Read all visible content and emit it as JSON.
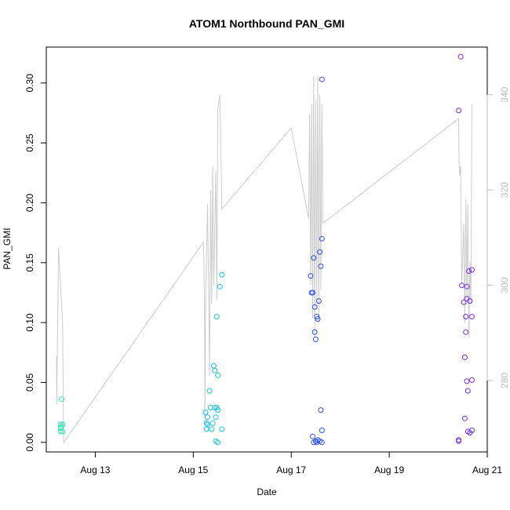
{
  "chart_data": {
    "type": "scatter",
    "title": "ATOM1 Northbound PAN_GMI",
    "xlabel": "Date",
    "ylabel": "PAN_GMI",
    "xlim": [
      "2024-08-12T00:00",
      "2024-08-21T00:00"
    ],
    "ylim": [
      -0.008,
      0.33
    ],
    "y2lim": [
      265,
      350
    ],
    "x_ticks": [
      {
        "x": "2024-08-13T00:00",
        "label": "Aug 13"
      },
      {
        "x": "2024-08-15T00:00",
        "label": "Aug 15"
      },
      {
        "x": "2024-08-17T00:00",
        "label": "Aug 17"
      },
      {
        "x": "2024-08-19T00:00",
        "label": "Aug 19"
      },
      {
        "x": "2024-08-21T00:00",
        "label": "Aug 21"
      }
    ],
    "y_ticks": [
      "0.00",
      "0.05",
      "0.10",
      "0.15",
      "0.20",
      "0.25",
      "0.30"
    ],
    "y2_ticks": [
      "280",
      "300",
      "320",
      "340"
    ],
    "grid": false,
    "colors": {
      "Aug 12": "#2ee8b4",
      "Aug 15": "#19c3e6",
      "Aug 17": "#2d4fe8",
      "Aug 20": "#7a2de0",
      "line": "#cccccc"
    },
    "series": [
      {
        "group": "Aug 12",
        "points": [
          [
            "2024-08-12T07:00",
            0.015
          ],
          [
            "2024-08-12T07:00",
            0.012
          ],
          [
            "2024-08-12T07:00",
            0.009
          ],
          [
            "2024-08-12T07:30",
            0.036
          ],
          [
            "2024-08-12T07:30",
            0.013
          ],
          [
            "2024-08-12T08:00",
            0.015
          ],
          [
            "2024-08-12T08:00",
            0.009
          ]
        ]
      },
      {
        "group": "Aug 15",
        "points": [
          [
            "2024-08-15T06:00",
            0.025
          ],
          [
            "2024-08-15T06:30",
            0.016
          ],
          [
            "2024-08-15T06:30",
            0.011
          ],
          [
            "2024-08-15T07:00",
            0.015
          ],
          [
            "2024-08-15T07:00",
            0.021
          ],
          [
            "2024-08-15T08:00",
            0.043
          ],
          [
            "2024-08-15T08:30",
            0.029
          ],
          [
            "2024-08-15T09:00",
            0.011
          ],
          [
            "2024-08-15T09:30",
            0.016
          ],
          [
            "2024-08-15T10:00",
            0.064
          ],
          [
            "2024-08-15T10:30",
            0.06
          ],
          [
            "2024-08-15T10:30",
            0.029
          ],
          [
            "2024-08-15T11:00",
            0.021
          ],
          [
            "2024-08-15T11:00",
            0.001
          ],
          [
            "2024-08-15T11:30",
            0.105
          ],
          [
            "2024-08-15T11:30",
            0.029
          ],
          [
            "2024-08-15T12:00",
            0.0
          ],
          [
            "2024-08-15T12:00",
            0.027
          ],
          [
            "2024-08-15T12:00",
            0.056
          ],
          [
            "2024-08-15T13:00",
            0.13
          ],
          [
            "2024-08-15T14:00",
            0.14
          ],
          [
            "2024-08-15T14:00",
            0.011
          ]
        ]
      },
      {
        "group": "Aug 17",
        "points": [
          [
            "2024-08-17T09:30",
            0.139
          ],
          [
            "2024-08-17T10:00",
            0.125
          ],
          [
            "2024-08-17T10:30",
            0.125
          ],
          [
            "2024-08-17T10:30",
            0.005
          ],
          [
            "2024-08-17T11:00",
            0.154
          ],
          [
            "2024-08-17T11:00",
            0.0
          ],
          [
            "2024-08-17T11:30",
            0.092
          ],
          [
            "2024-08-17T11:30",
            0.113
          ],
          [
            "2024-08-17T12:00",
            0.086
          ],
          [
            "2024-08-17T12:00",
            0.001
          ],
          [
            "2024-08-17T12:30",
            0.105
          ],
          [
            "2024-08-17T12:30",
            0.0
          ],
          [
            "2024-08-17T13:00",
            0.103
          ],
          [
            "2024-08-17T13:00",
            0.002
          ],
          [
            "2024-08-17T13:30",
            0.118
          ],
          [
            "2024-08-17T14:00",
            0.159
          ],
          [
            "2024-08-17T14:00",
            0.001
          ],
          [
            "2024-08-17T14:30",
            0.147
          ],
          [
            "2024-08-17T14:30",
            0.027
          ],
          [
            "2024-08-17T15:00",
            0.303
          ],
          [
            "2024-08-17T15:00",
            0.17
          ],
          [
            "2024-08-17T15:00",
            0.01
          ],
          [
            "2024-08-17T15:00",
            0.0
          ]
        ]
      },
      {
        "group": "Aug 20",
        "points": [
          [
            "2024-08-20T10:00",
            0.277
          ],
          [
            "2024-08-20T10:00",
            0.002
          ],
          [
            "2024-08-20T10:00",
            0.001
          ],
          [
            "2024-08-20T11:00",
            0.322
          ],
          [
            "2024-08-20T11:30",
            0.131
          ],
          [
            "2024-08-20T12:30",
            0.117
          ],
          [
            "2024-08-20T13:00",
            0.071
          ],
          [
            "2024-08-20T13:00",
            0.02
          ],
          [
            "2024-08-20T13:30",
            0.105
          ],
          [
            "2024-08-20T13:30",
            0.092
          ],
          [
            "2024-08-20T14:00",
            0.13
          ],
          [
            "2024-08-20T14:00",
            0.12
          ],
          [
            "2024-08-20T14:00",
            0.051
          ],
          [
            "2024-08-20T14:30",
            0.043
          ],
          [
            "2024-08-20T14:30",
            0.009
          ],
          [
            "2024-08-20T15:00",
            0.143
          ],
          [
            "2024-08-20T15:30",
            0.118
          ],
          [
            "2024-08-20T15:30",
            0.008
          ],
          [
            "2024-08-20T16:30",
            0.144
          ],
          [
            "2024-08-20T16:30",
            0.105
          ],
          [
            "2024-08-20T16:30",
            0.052
          ],
          [
            "2024-08-20T16:30",
            0.01
          ]
        ]
      }
    ],
    "line_series": {
      "axis": "right",
      "points": [
        [
          "2024-08-12T05:00",
          285
        ],
        [
          "2024-08-12T05:10",
          275
        ],
        [
          "2024-08-12T05:20",
          283
        ],
        [
          "2024-08-12T06:00",
          308
        ],
        [
          "2024-08-12T07:00",
          300
        ],
        [
          "2024-08-12T08:00",
          292
        ],
        [
          "2024-08-12T08:30",
          267
        ],
        [
          "2024-08-15T05:00",
          309
        ],
        [
          "2024-08-15T05:30",
          297
        ],
        [
          "2024-08-15T05:40",
          271
        ],
        [
          "2024-08-15T06:00",
          295
        ],
        [
          "2024-08-15T07:00",
          317
        ],
        [
          "2024-08-15T07:30",
          300
        ],
        [
          "2024-08-15T08:00",
          281
        ],
        [
          "2024-08-15T08:30",
          320
        ],
        [
          "2024-08-15T09:00",
          296
        ],
        [
          "2024-08-15T09:30",
          325
        ],
        [
          "2024-08-15T10:00",
          300
        ],
        [
          "2024-08-15T11:00",
          324
        ],
        [
          "2024-08-15T11:30",
          297
        ],
        [
          "2024-08-15T12:00",
          337
        ],
        [
          "2024-08-15T13:00",
          340
        ],
        [
          "2024-08-15T14:00",
          316
        ],
        [
          "2024-08-17T00:00",
          333
        ],
        [
          "2024-08-17T08:30",
          314
        ],
        [
          "2024-08-17T09:00",
          336
        ],
        [
          "2024-08-17T09:30",
          300
        ],
        [
          "2024-08-17T10:00",
          338
        ],
        [
          "2024-08-17T10:30",
          293
        ],
        [
          "2024-08-17T11:00",
          344
        ],
        [
          "2024-08-17T11:30",
          289
        ],
        [
          "2024-08-17T12:00",
          339
        ],
        [
          "2024-08-17T12:30",
          296
        ],
        [
          "2024-08-17T13:00",
          344
        ],
        [
          "2024-08-17T13:30",
          292
        ],
        [
          "2024-08-17T14:00",
          340
        ],
        [
          "2024-08-17T14:30",
          299
        ],
        [
          "2024-08-17T15:00",
          338
        ],
        [
          "2024-08-17T15:30",
          313
        ],
        [
          "2024-08-20T10:00",
          335
        ],
        [
          "2024-08-20T10:10",
          326
        ],
        [
          "2024-08-20T10:30",
          323
        ],
        [
          "2024-08-20T11:00",
          325
        ],
        [
          "2024-08-20T11:30",
          300
        ],
        [
          "2024-08-20T12:30",
          313
        ],
        [
          "2024-08-20T13:00",
          292
        ],
        [
          "2024-08-20T13:30",
          318
        ],
        [
          "2024-08-20T14:00",
          297
        ],
        [
          "2024-08-20T14:30",
          317
        ],
        [
          "2024-08-20T15:00",
          289
        ],
        [
          "2024-08-20T15:30",
          305
        ],
        [
          "2024-08-20T16:00",
          296
        ],
        [
          "2024-08-20T16:30",
          338
        ]
      ]
    }
  }
}
